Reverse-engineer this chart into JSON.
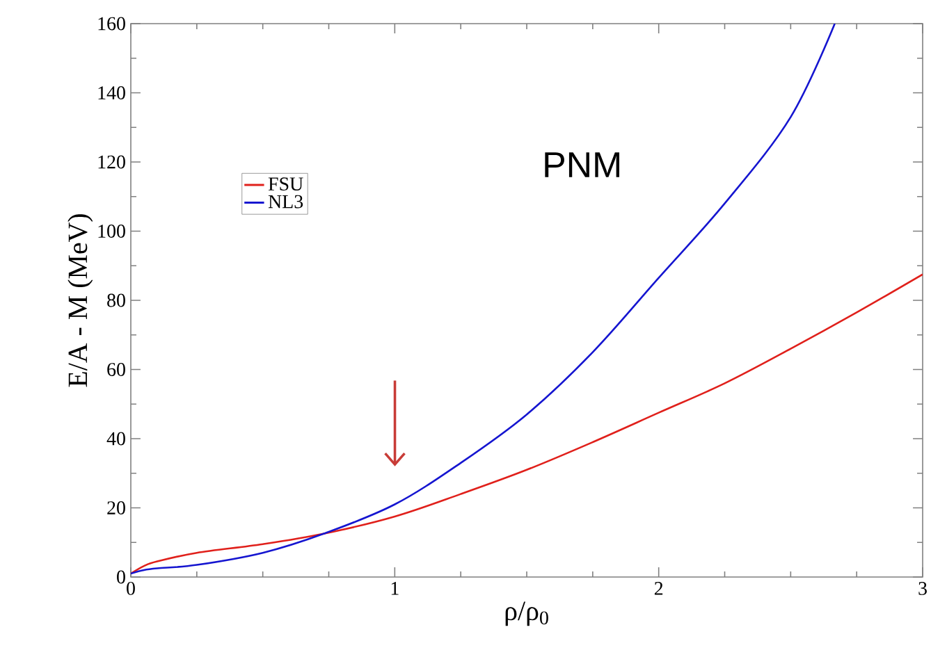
{
  "chart_data": {
    "type": "line",
    "xlabel": "ρ/ρ$_{0}$",
    "ylabel": "E/A - M (MeV)",
    "annotations": [
      "PNM"
    ],
    "xlim": [
      0,
      3
    ],
    "ylim": [
      0,
      160
    ],
    "xticks": [
      0,
      1,
      2,
      3
    ],
    "yticks": [
      0,
      20,
      40,
      60,
      80,
      100,
      120,
      140,
      160
    ],
    "legend": "top left",
    "grid": false,
    "marker": "none",
    "line_style": "solid",
    "series": [
      {
        "name": "FSU",
        "color": "#e0201b",
        "x": [
          0,
          0.05,
          0.1,
          0.25,
          0.5,
          0.73,
          1.0,
          1.25,
          1.5,
          1.75,
          2.0,
          2.25,
          2.5,
          2.75,
          3.0
        ],
        "values": [
          1,
          3.2,
          4.5,
          7,
          9.5,
          12.5,
          17.5,
          24,
          31,
          39,
          47.5,
          56,
          66,
          76.5,
          87.5
        ]
      },
      {
        "name": "NL3",
        "color": "#1515d0",
        "x": [
          0,
          0.05,
          0.1,
          0.25,
          0.5,
          0.73,
          1.0,
          1.25,
          1.5,
          1.75,
          2.0,
          2.25,
          2.5,
          2.667
        ],
        "values": [
          1,
          2,
          2.5,
          3.5,
          7,
          12.5,
          21,
          33,
          47,
          65,
          86.5,
          108,
          133,
          160
        ]
      }
    ]
  }
}
